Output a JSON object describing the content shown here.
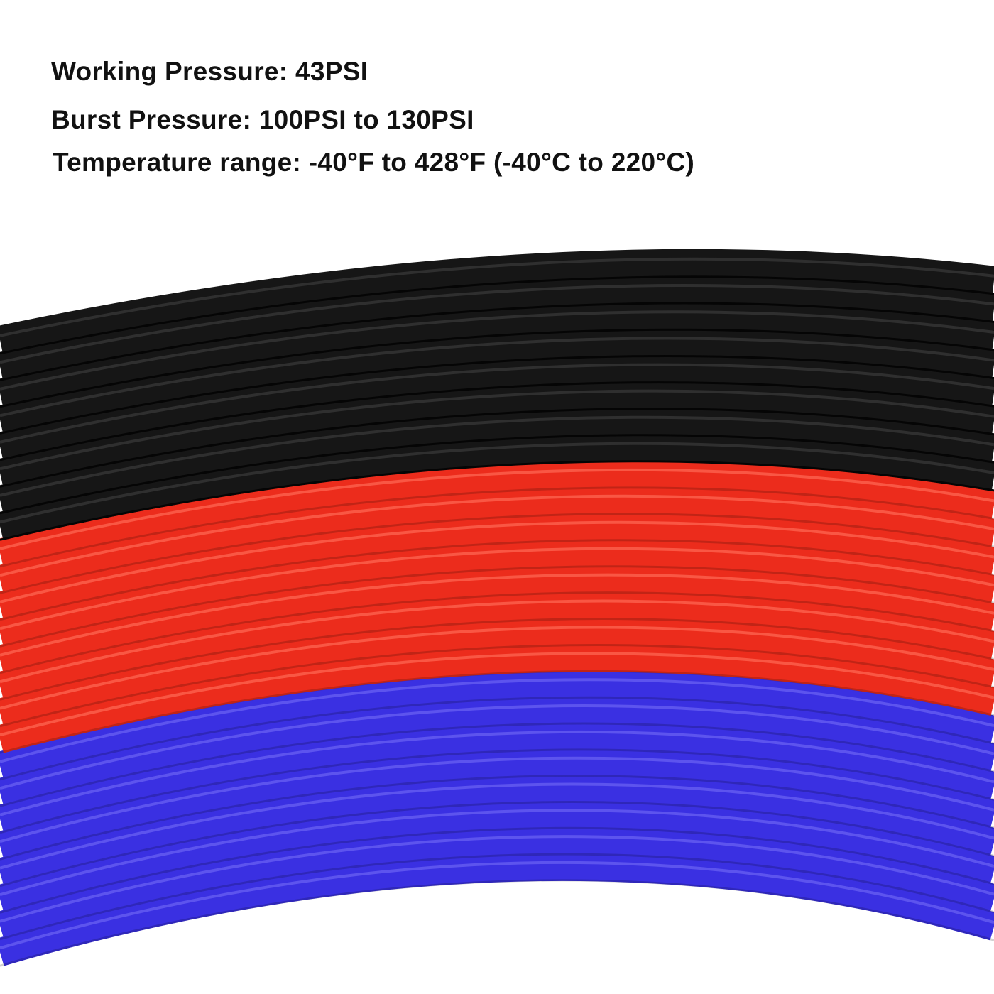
{
  "specs": [
    "Working Pressure: 43PSI",
    "Burst Pressure: 100PSI to 130PSI",
    "Temperature range: -40°F to 428°F (-40°C to 220°C)"
  ],
  "tubes": {
    "colors": {
      "black": "#161616",
      "red": "#ec2c1c",
      "blue": "#3a30e2"
    },
    "highlights": {
      "black": "#3a3a3a",
      "red": "#ff6a55",
      "blue": "#6c64f4"
    },
    "order": [
      "black",
      "red",
      "blue"
    ]
  }
}
